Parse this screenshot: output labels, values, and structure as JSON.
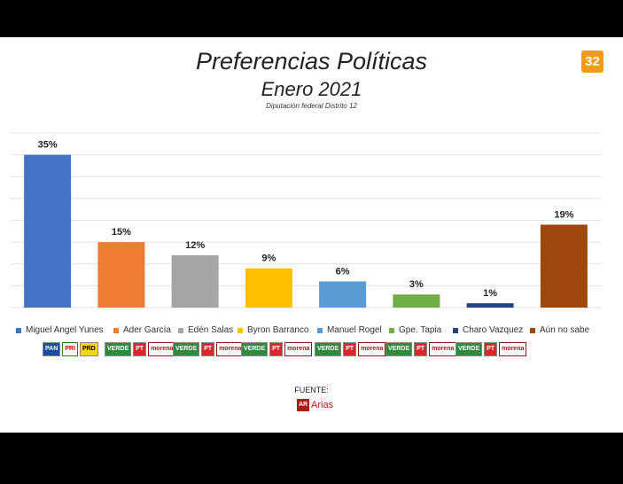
{
  "header": {
    "title": "Preferencias Políticas",
    "subtitle": "Enero 2021",
    "caption": "Diputación federal Distrito 12",
    "channel_logo": "32"
  },
  "chart_data": {
    "type": "bar",
    "categories": [
      "Miguel Angel Yunes",
      "Ader García",
      "Edén Salas",
      "Byron Barranco",
      "Manuel Rogel",
      "Gpe. Tapia",
      "Charo Vazquez",
      "Aún no sabe"
    ],
    "values": [
      35,
      15,
      12,
      9,
      6,
      3,
      1,
      19
    ],
    "value_labels": [
      "35%",
      "15%",
      "12%",
      "9%",
      "6%",
      "3%",
      "1%",
      "19%"
    ],
    "colors": [
      "#4472c4",
      "#ed7d31",
      "#a5a5a5",
      "#ffc000",
      "#5b9bd5",
      "#70ad47",
      "#264478",
      "#9e480e"
    ],
    "ylim": [
      0,
      40
    ],
    "grid": true,
    "legend": "bottom",
    "xlabel": "",
    "ylabel": ""
  },
  "party_logos": [
    {
      "candidate": "Miguel Angel Yunes",
      "logos": [
        "pan",
        "pri",
        "prd"
      ],
      "labels": [
        "PAN",
        "PRI",
        "PRD"
      ]
    },
    {
      "candidate": "Ader García",
      "logos": [
        "verde",
        "pt",
        "morena"
      ],
      "labels": [
        "VERDE",
        "PT",
        "morena"
      ]
    },
    {
      "candidate": "Edén Salas",
      "logos": [
        "verde",
        "pt",
        "morena"
      ],
      "labels": [
        "VERDE",
        "PT",
        "morena"
      ]
    },
    {
      "candidate": "Byron Barranco",
      "logos": [
        "verde",
        "pt",
        "morena"
      ],
      "labels": [
        "VERDE",
        "PT",
        "morena"
      ]
    },
    {
      "candidate": "Manuel Rogel",
      "logos": [
        "verde",
        "pt",
        "morena"
      ],
      "labels": [
        "VERDE",
        "PT",
        "morena"
      ]
    },
    {
      "candidate": "Gpe. Tapia",
      "logos": [
        "verde",
        "pt",
        "morena"
      ],
      "labels": [
        "VERDE",
        "PT",
        "morena"
      ]
    },
    {
      "candidate": "Charo Vazquez",
      "logos": [
        "verde",
        "pt",
        "morena"
      ],
      "labels": [
        "VERDE",
        "PT",
        "morena"
      ]
    }
  ],
  "footer": {
    "source_label": "FUENTE:",
    "source_mark": "AR",
    "source_name": "Arias"
  }
}
